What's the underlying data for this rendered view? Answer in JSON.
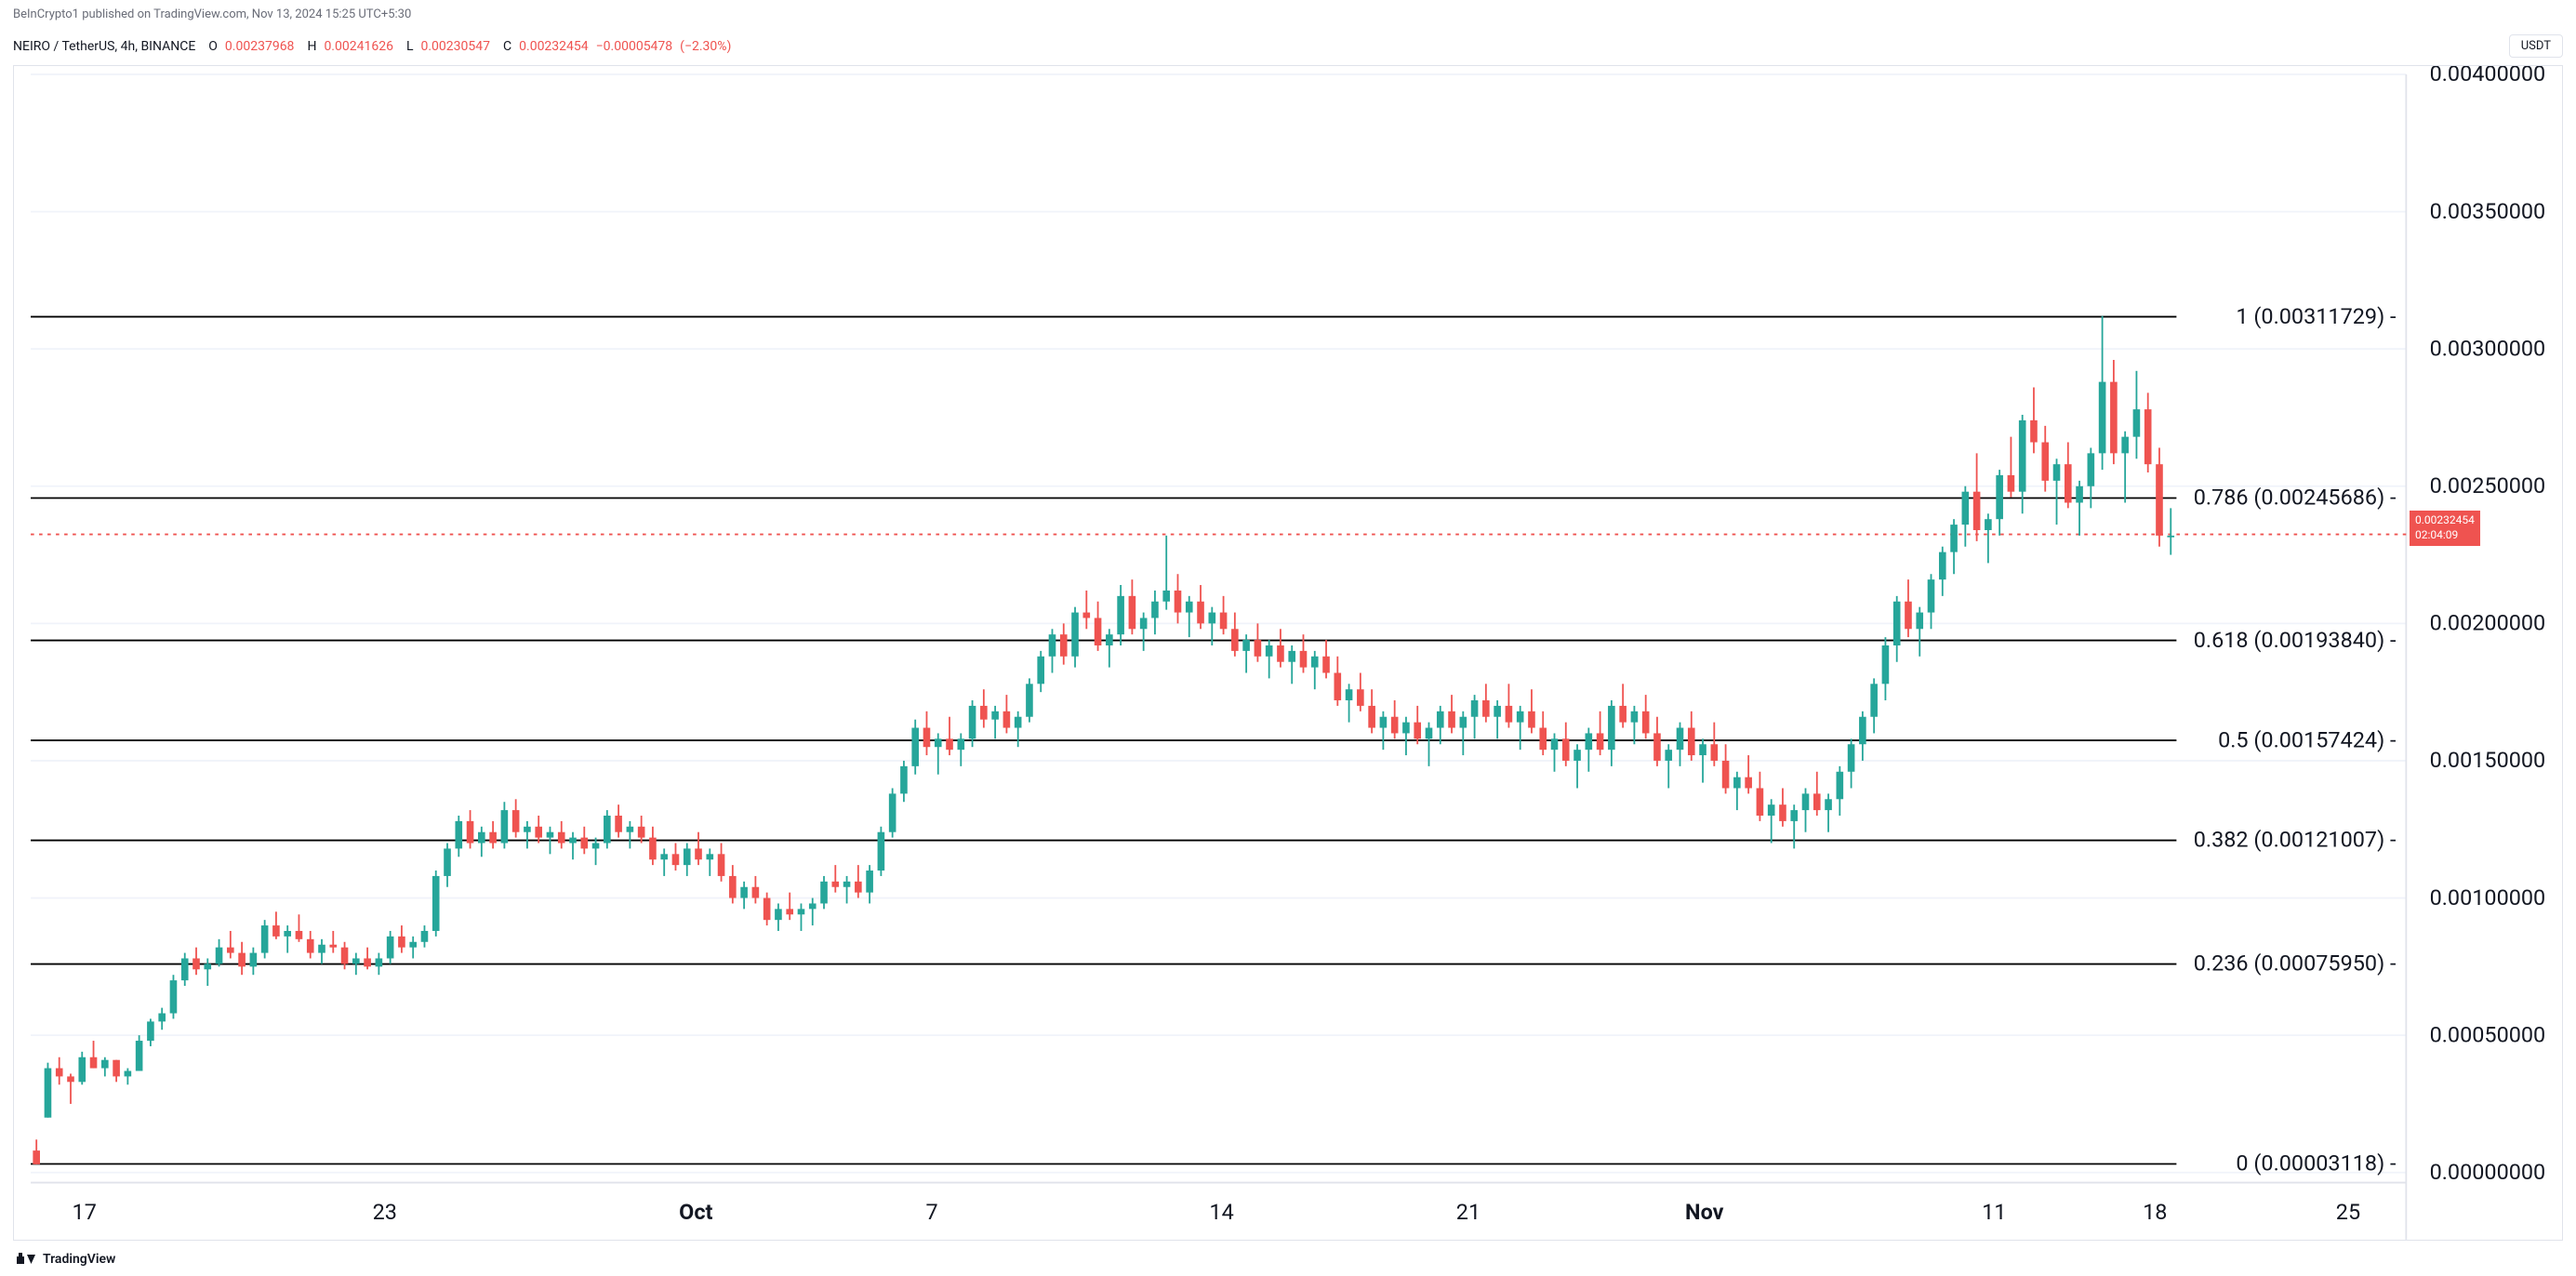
{
  "attribution": "BeInCrypto1 published on TradingView.com, Nov 13, 2024 15:25 UTC+5:30",
  "symbol": "NEIRO / TetherUS, 4h, BINANCE",
  "ohlc": {
    "o_label": "O",
    "o": "0.00237968",
    "h_label": "H",
    "h": "0.00241626",
    "l_label": "L",
    "l": "0.00230547",
    "c_label": "C",
    "c": "0.00232454",
    "chg": "−0.00005478",
    "chg_pct": "(−2.30%)"
  },
  "currency_badge": "USDT",
  "price_box": {
    "price": "0.00232454",
    "countdown": "02:04:09"
  },
  "y_axis": {
    "min": 0.0,
    "max": 0.004,
    "labels": [
      "0.00000000",
      "0.00050000",
      "0.00100000",
      "0.00150000",
      "0.00200000",
      "0.00250000",
      "0.00300000",
      "0.00350000",
      "0.00400000"
    ]
  },
  "fib_levels": [
    {
      "ratio": "1",
      "price": 0.00311729,
      "label": "1 (0.00311729)"
    },
    {
      "ratio": "0.786",
      "price": 0.00245686,
      "label": "0.786 (0.00245686)"
    },
    {
      "ratio": "0.618",
      "price": 0.0019384,
      "label": "0.618 (0.00193840)"
    },
    {
      "ratio": "0.5",
      "price": 0.00157424,
      "label": "0.5 (0.00157424)"
    },
    {
      "ratio": "0.382",
      "price": 0.00121007,
      "label": "0.382 (0.00121007)"
    },
    {
      "ratio": "0.236",
      "price": 0.0007595,
      "label": "0.236 (0.00075950)"
    },
    {
      "ratio": "0",
      "price": 3.118e-05,
      "label": "0 (0.00003118)"
    }
  ],
  "x_axis": [
    {
      "pos": 0.025,
      "label": "17",
      "bold": false
    },
    {
      "pos": 0.165,
      "label": "23",
      "bold": false
    },
    {
      "pos": 0.31,
      "label": "Oct",
      "bold": true
    },
    {
      "pos": 0.42,
      "label": "7",
      "bold": false
    },
    {
      "pos": 0.555,
      "label": "14",
      "bold": false
    },
    {
      "pos": 0.67,
      "label": "21",
      "bold": false
    },
    {
      "pos": 0.78,
      "label": "Nov",
      "bold": true
    },
    {
      "pos": 0.915,
      "label": "11",
      "bold": false
    },
    {
      "pos": 0.99,
      "label": "18",
      "bold": false
    },
    {
      "pos": 1.08,
      "label": "25",
      "bold": false
    }
  ],
  "colors": {
    "up": "#26a69a",
    "down": "#ef5350",
    "grid": "#f0f3fa",
    "border": "#e0e3eb",
    "fib_line": "#000000",
    "price_dotted": "#ef5350"
  },
  "current_price": 0.00232454,
  "candles": [
    {
      "o": 8e-05,
      "h": 0.00012,
      "l": 3e-05,
      "c": 3e-05
    },
    {
      "o": 0.0002,
      "h": 0.0004,
      "l": 0.0002,
      "c": 0.00038
    },
    {
      "o": 0.00038,
      "h": 0.00042,
      "l": 0.00032,
      "c": 0.00035
    },
    {
      "o": 0.00035,
      "h": 0.00036,
      "l": 0.00025,
      "c": 0.00033
    },
    {
      "o": 0.00033,
      "h": 0.00044,
      "l": 0.00032,
      "c": 0.00042
    },
    {
      "o": 0.00042,
      "h": 0.00048,
      "l": 0.00038,
      "c": 0.00038
    },
    {
      "o": 0.00038,
      "h": 0.00042,
      "l": 0.00035,
      "c": 0.00041
    },
    {
      "o": 0.00041,
      "h": 0.00041,
      "l": 0.00033,
      "c": 0.00035
    },
    {
      "o": 0.00035,
      "h": 0.00038,
      "l": 0.00032,
      "c": 0.00037
    },
    {
      "o": 0.00037,
      "h": 0.0005,
      "l": 0.00037,
      "c": 0.00048
    },
    {
      "o": 0.00048,
      "h": 0.00056,
      "l": 0.00046,
      "c": 0.00055
    },
    {
      "o": 0.00055,
      "h": 0.0006,
      "l": 0.00052,
      "c": 0.00058
    },
    {
      "o": 0.00058,
      "h": 0.00072,
      "l": 0.00056,
      "c": 0.0007
    },
    {
      "o": 0.0007,
      "h": 0.0008,
      "l": 0.00068,
      "c": 0.00078
    },
    {
      "o": 0.00078,
      "h": 0.00082,
      "l": 0.00072,
      "c": 0.00074
    },
    {
      "o": 0.00074,
      "h": 0.00078,
      "l": 0.00068,
      "c": 0.00076
    },
    {
      "o": 0.00076,
      "h": 0.00085,
      "l": 0.00075,
      "c": 0.00082
    },
    {
      "o": 0.00082,
      "h": 0.00088,
      "l": 0.00078,
      "c": 0.0008
    },
    {
      "o": 0.0008,
      "h": 0.00084,
      "l": 0.00072,
      "c": 0.00075
    },
    {
      "o": 0.00075,
      "h": 0.00082,
      "l": 0.00072,
      "c": 0.0008
    },
    {
      "o": 0.0008,
      "h": 0.00092,
      "l": 0.00078,
      "c": 0.0009
    },
    {
      "o": 0.0009,
      "h": 0.00095,
      "l": 0.00085,
      "c": 0.00086
    },
    {
      "o": 0.00086,
      "h": 0.0009,
      "l": 0.0008,
      "c": 0.00088
    },
    {
      "o": 0.00088,
      "h": 0.00094,
      "l": 0.00084,
      "c": 0.00085
    },
    {
      "o": 0.00085,
      "h": 0.00088,
      "l": 0.00078,
      "c": 0.0008
    },
    {
      "o": 0.0008,
      "h": 0.00085,
      "l": 0.00076,
      "c": 0.00083
    },
    {
      "o": 0.00083,
      "h": 0.00088,
      "l": 0.0008,
      "c": 0.00082
    },
    {
      "o": 0.00082,
      "h": 0.00084,
      "l": 0.00074,
      "c": 0.00076
    },
    {
      "o": 0.00076,
      "h": 0.0008,
      "l": 0.00072,
      "c": 0.00078
    },
    {
      "o": 0.00078,
      "h": 0.00082,
      "l": 0.00074,
      "c": 0.00075
    },
    {
      "o": 0.00075,
      "h": 0.0008,
      "l": 0.00072,
      "c": 0.00078
    },
    {
      "o": 0.00078,
      "h": 0.00088,
      "l": 0.00076,
      "c": 0.00086
    },
    {
      "o": 0.00086,
      "h": 0.0009,
      "l": 0.0008,
      "c": 0.00082
    },
    {
      "o": 0.00082,
      "h": 0.00086,
      "l": 0.00078,
      "c": 0.00084
    },
    {
      "o": 0.00084,
      "h": 0.0009,
      "l": 0.00082,
      "c": 0.00088
    },
    {
      "o": 0.00088,
      "h": 0.0011,
      "l": 0.00086,
      "c": 0.00108
    },
    {
      "o": 0.00108,
      "h": 0.0012,
      "l": 0.00104,
      "c": 0.00118
    },
    {
      "o": 0.00118,
      "h": 0.0013,
      "l": 0.00115,
      "c": 0.00128
    },
    {
      "o": 0.00128,
      "h": 0.00132,
      "l": 0.00118,
      "c": 0.0012
    },
    {
      "o": 0.0012,
      "h": 0.00126,
      "l": 0.00115,
      "c": 0.00124
    },
    {
      "o": 0.00124,
      "h": 0.00128,
      "l": 0.00118,
      "c": 0.0012
    },
    {
      "o": 0.0012,
      "h": 0.00135,
      "l": 0.00118,
      "c": 0.00132
    },
    {
      "o": 0.00132,
      "h": 0.00136,
      "l": 0.00122,
      "c": 0.00124
    },
    {
      "o": 0.00124,
      "h": 0.00128,
      "l": 0.00118,
      "c": 0.00126
    },
    {
      "o": 0.00126,
      "h": 0.0013,
      "l": 0.0012,
      "c": 0.00122
    },
    {
      "o": 0.00122,
      "h": 0.00126,
      "l": 0.00116,
      "c": 0.00124
    },
    {
      "o": 0.00124,
      "h": 0.00128,
      "l": 0.00118,
      "c": 0.0012
    },
    {
      "o": 0.0012,
      "h": 0.00124,
      "l": 0.00114,
      "c": 0.00122
    },
    {
      "o": 0.00122,
      "h": 0.00126,
      "l": 0.00116,
      "c": 0.00118
    },
    {
      "o": 0.00118,
      "h": 0.00122,
      "l": 0.00112,
      "c": 0.0012
    },
    {
      "o": 0.0012,
      "h": 0.00132,
      "l": 0.00118,
      "c": 0.0013
    },
    {
      "o": 0.0013,
      "h": 0.00134,
      "l": 0.00122,
      "c": 0.00124
    },
    {
      "o": 0.00124,
      "h": 0.00128,
      "l": 0.00118,
      "c": 0.00126
    },
    {
      "o": 0.00126,
      "h": 0.0013,
      "l": 0.0012,
      "c": 0.00122
    },
    {
      "o": 0.00122,
      "h": 0.00126,
      "l": 0.00112,
      "c": 0.00114
    },
    {
      "o": 0.00114,
      "h": 0.00118,
      "l": 0.00108,
      "c": 0.00116
    },
    {
      "o": 0.00116,
      "h": 0.0012,
      "l": 0.0011,
      "c": 0.00112
    },
    {
      "o": 0.00112,
      "h": 0.0012,
      "l": 0.00108,
      "c": 0.00118
    },
    {
      "o": 0.00118,
      "h": 0.00124,
      "l": 0.00112,
      "c": 0.00114
    },
    {
      "o": 0.00114,
      "h": 0.00118,
      "l": 0.00108,
      "c": 0.00116
    },
    {
      "o": 0.00116,
      "h": 0.0012,
      "l": 0.00106,
      "c": 0.00108
    },
    {
      "o": 0.00108,
      "h": 0.00112,
      "l": 0.00098,
      "c": 0.001
    },
    {
      "o": 0.001,
      "h": 0.00106,
      "l": 0.00096,
      "c": 0.00104
    },
    {
      "o": 0.00104,
      "h": 0.00108,
      "l": 0.00098,
      "c": 0.001
    },
    {
      "o": 0.001,
      "h": 0.00102,
      "l": 0.0009,
      "c": 0.00092
    },
    {
      "o": 0.00092,
      "h": 0.00098,
      "l": 0.00088,
      "c": 0.00096
    },
    {
      "o": 0.00096,
      "h": 0.00102,
      "l": 0.00092,
      "c": 0.00094
    },
    {
      "o": 0.00094,
      "h": 0.00098,
      "l": 0.00088,
      "c": 0.00096
    },
    {
      "o": 0.00096,
      "h": 0.001,
      "l": 0.0009,
      "c": 0.00098
    },
    {
      "o": 0.00098,
      "h": 0.00108,
      "l": 0.00096,
      "c": 0.00106
    },
    {
      "o": 0.00106,
      "h": 0.00112,
      "l": 0.00102,
      "c": 0.00104
    },
    {
      "o": 0.00104,
      "h": 0.00108,
      "l": 0.00098,
      "c": 0.00106
    },
    {
      "o": 0.00106,
      "h": 0.00112,
      "l": 0.001,
      "c": 0.00102
    },
    {
      "o": 0.00102,
      "h": 0.00112,
      "l": 0.00098,
      "c": 0.0011
    },
    {
      "o": 0.0011,
      "h": 0.00126,
      "l": 0.00108,
      "c": 0.00124
    },
    {
      "o": 0.00124,
      "h": 0.0014,
      "l": 0.00122,
      "c": 0.00138
    },
    {
      "o": 0.00138,
      "h": 0.0015,
      "l": 0.00135,
      "c": 0.00148
    },
    {
      "o": 0.00148,
      "h": 0.00165,
      "l": 0.00145,
      "c": 0.00162
    },
    {
      "o": 0.00162,
      "h": 0.00168,
      "l": 0.00152,
      "c": 0.00155
    },
    {
      "o": 0.00155,
      "h": 0.0016,
      "l": 0.00145,
      "c": 0.00158
    },
    {
      "o": 0.00158,
      "h": 0.00166,
      "l": 0.00152,
      "c": 0.00154
    },
    {
      "o": 0.00154,
      "h": 0.0016,
      "l": 0.00148,
      "c": 0.00158
    },
    {
      "o": 0.00158,
      "h": 0.00172,
      "l": 0.00155,
      "c": 0.0017
    },
    {
      "o": 0.0017,
      "h": 0.00176,
      "l": 0.00162,
      "c": 0.00165
    },
    {
      "o": 0.00165,
      "h": 0.0017,
      "l": 0.00158,
      "c": 0.00168
    },
    {
      "o": 0.00168,
      "h": 0.00174,
      "l": 0.0016,
      "c": 0.00162
    },
    {
      "o": 0.00162,
      "h": 0.00168,
      "l": 0.00155,
      "c": 0.00166
    },
    {
      "o": 0.00166,
      "h": 0.0018,
      "l": 0.00164,
      "c": 0.00178
    },
    {
      "o": 0.00178,
      "h": 0.0019,
      "l": 0.00175,
      "c": 0.00188
    },
    {
      "o": 0.00188,
      "h": 0.00198,
      "l": 0.00182,
      "c": 0.00196
    },
    {
      "o": 0.00196,
      "h": 0.002,
      "l": 0.00185,
      "c": 0.00188
    },
    {
      "o": 0.00188,
      "h": 0.00206,
      "l": 0.00184,
      "c": 0.00204
    },
    {
      "o": 0.00204,
      "h": 0.00212,
      "l": 0.00198,
      "c": 0.00202
    },
    {
      "o": 0.00202,
      "h": 0.00208,
      "l": 0.0019,
      "c": 0.00192
    },
    {
      "o": 0.00192,
      "h": 0.00198,
      "l": 0.00184,
      "c": 0.00196
    },
    {
      "o": 0.00196,
      "h": 0.00214,
      "l": 0.00192,
      "c": 0.0021
    },
    {
      "o": 0.0021,
      "h": 0.00216,
      "l": 0.00196,
      "c": 0.00198
    },
    {
      "o": 0.00198,
      "h": 0.00204,
      "l": 0.0019,
      "c": 0.00202
    },
    {
      "o": 0.00202,
      "h": 0.00212,
      "l": 0.00196,
      "c": 0.00208
    },
    {
      "o": 0.00208,
      "h": 0.00232,
      "l": 0.00205,
      "c": 0.00212
    },
    {
      "o": 0.00212,
      "h": 0.00218,
      "l": 0.002,
      "c": 0.00204
    },
    {
      "o": 0.00204,
      "h": 0.0021,
      "l": 0.00195,
      "c": 0.00208
    },
    {
      "o": 0.00208,
      "h": 0.00214,
      "l": 0.00198,
      "c": 0.002
    },
    {
      "o": 0.002,
      "h": 0.00206,
      "l": 0.00192,
      "c": 0.00204
    },
    {
      "o": 0.00204,
      "h": 0.0021,
      "l": 0.00196,
      "c": 0.00198
    },
    {
      "o": 0.00198,
      "h": 0.00204,
      "l": 0.00188,
      "c": 0.0019
    },
    {
      "o": 0.0019,
      "h": 0.00196,
      "l": 0.00182,
      "c": 0.00194
    },
    {
      "o": 0.00194,
      "h": 0.002,
      "l": 0.00186,
      "c": 0.00188
    },
    {
      "o": 0.00188,
      "h": 0.00194,
      "l": 0.0018,
      "c": 0.00192
    },
    {
      "o": 0.00192,
      "h": 0.00198,
      "l": 0.00184,
      "c": 0.00186
    },
    {
      "o": 0.00186,
      "h": 0.00192,
      "l": 0.00178,
      "c": 0.0019
    },
    {
      "o": 0.0019,
      "h": 0.00196,
      "l": 0.00182,
      "c": 0.00184
    },
    {
      "o": 0.00184,
      "h": 0.0019,
      "l": 0.00176,
      "c": 0.00188
    },
    {
      "o": 0.00188,
      "h": 0.00194,
      "l": 0.0018,
      "c": 0.00182
    },
    {
      "o": 0.00182,
      "h": 0.00188,
      "l": 0.0017,
      "c": 0.00172
    },
    {
      "o": 0.00172,
      "h": 0.00178,
      "l": 0.00164,
      "c": 0.00176
    },
    {
      "o": 0.00176,
      "h": 0.00182,
      "l": 0.00168,
      "c": 0.0017
    },
    {
      "o": 0.0017,
      "h": 0.00176,
      "l": 0.0016,
      "c": 0.00162
    },
    {
      "o": 0.00162,
      "h": 0.00168,
      "l": 0.00154,
      "c": 0.00166
    },
    {
      "o": 0.00166,
      "h": 0.00172,
      "l": 0.00158,
      "c": 0.0016
    },
    {
      "o": 0.0016,
      "h": 0.00166,
      "l": 0.00152,
      "c": 0.00164
    },
    {
      "o": 0.00164,
      "h": 0.0017,
      "l": 0.00156,
      "c": 0.00158
    },
    {
      "o": 0.00158,
      "h": 0.00164,
      "l": 0.00148,
      "c": 0.00162
    },
    {
      "o": 0.00162,
      "h": 0.0017,
      "l": 0.00156,
      "c": 0.00168
    },
    {
      "o": 0.00168,
      "h": 0.00174,
      "l": 0.0016,
      "c": 0.00162
    },
    {
      "o": 0.00162,
      "h": 0.00168,
      "l": 0.00152,
      "c": 0.00166
    },
    {
      "o": 0.00166,
      "h": 0.00174,
      "l": 0.00158,
      "c": 0.00172
    },
    {
      "o": 0.00172,
      "h": 0.00178,
      "l": 0.00164,
      "c": 0.00166
    },
    {
      "o": 0.00166,
      "h": 0.00172,
      "l": 0.00158,
      "c": 0.0017
    },
    {
      "o": 0.0017,
      "h": 0.00178,
      "l": 0.00162,
      "c": 0.00164
    },
    {
      "o": 0.00164,
      "h": 0.0017,
      "l": 0.00154,
      "c": 0.00168
    },
    {
      "o": 0.00168,
      "h": 0.00176,
      "l": 0.0016,
      "c": 0.00162
    },
    {
      "o": 0.00162,
      "h": 0.00168,
      "l": 0.00152,
      "c": 0.00154
    },
    {
      "o": 0.00154,
      "h": 0.0016,
      "l": 0.00146,
      "c": 0.00158
    },
    {
      "o": 0.00158,
      "h": 0.00164,
      "l": 0.00148,
      "c": 0.0015
    },
    {
      "o": 0.0015,
      "h": 0.00156,
      "l": 0.0014,
      "c": 0.00154
    },
    {
      "o": 0.00154,
      "h": 0.00162,
      "l": 0.00146,
      "c": 0.0016
    },
    {
      "o": 0.0016,
      "h": 0.00168,
      "l": 0.00152,
      "c": 0.00154
    },
    {
      "o": 0.00154,
      "h": 0.00172,
      "l": 0.00148,
      "c": 0.0017
    },
    {
      "o": 0.0017,
      "h": 0.00178,
      "l": 0.00162,
      "c": 0.00164
    },
    {
      "o": 0.00164,
      "h": 0.0017,
      "l": 0.00156,
      "c": 0.00168
    },
    {
      "o": 0.00168,
      "h": 0.00174,
      "l": 0.00158,
      "c": 0.0016
    },
    {
      "o": 0.0016,
      "h": 0.00166,
      "l": 0.00148,
      "c": 0.0015
    },
    {
      "o": 0.0015,
      "h": 0.00156,
      "l": 0.0014,
      "c": 0.00154
    },
    {
      "o": 0.00154,
      "h": 0.00164,
      "l": 0.00148,
      "c": 0.00162
    },
    {
      "o": 0.00162,
      "h": 0.00168,
      "l": 0.0015,
      "c": 0.00152
    },
    {
      "o": 0.00152,
      "h": 0.00158,
      "l": 0.00142,
      "c": 0.00156
    },
    {
      "o": 0.00156,
      "h": 0.00164,
      "l": 0.00148,
      "c": 0.0015
    },
    {
      "o": 0.0015,
      "h": 0.00156,
      "l": 0.00138,
      "c": 0.0014
    },
    {
      "o": 0.0014,
      "h": 0.00146,
      "l": 0.00132,
      "c": 0.00144
    },
    {
      "o": 0.00144,
      "h": 0.00152,
      "l": 0.00138,
      "c": 0.0014
    },
    {
      "o": 0.0014,
      "h": 0.00146,
      "l": 0.00128,
      "c": 0.0013
    },
    {
      "o": 0.0013,
      "h": 0.00136,
      "l": 0.0012,
      "c": 0.00134
    },
    {
      "o": 0.00134,
      "h": 0.0014,
      "l": 0.00126,
      "c": 0.00128
    },
    {
      "o": 0.00128,
      "h": 0.00134,
      "l": 0.00118,
      "c": 0.00132
    },
    {
      "o": 0.00132,
      "h": 0.0014,
      "l": 0.00124,
      "c": 0.00138
    },
    {
      "o": 0.00138,
      "h": 0.00146,
      "l": 0.0013,
      "c": 0.00132
    },
    {
      "o": 0.00132,
      "h": 0.00138,
      "l": 0.00124,
      "c": 0.00136
    },
    {
      "o": 0.00136,
      "h": 0.00148,
      "l": 0.0013,
      "c": 0.00146
    },
    {
      "o": 0.00146,
      "h": 0.00158,
      "l": 0.0014,
      "c": 0.00156
    },
    {
      "o": 0.00156,
      "h": 0.00168,
      "l": 0.0015,
      "c": 0.00166
    },
    {
      "o": 0.00166,
      "h": 0.0018,
      "l": 0.0016,
      "c": 0.00178
    },
    {
      "o": 0.00178,
      "h": 0.00195,
      "l": 0.00172,
      "c": 0.00192
    },
    {
      "o": 0.00192,
      "h": 0.0021,
      "l": 0.00186,
      "c": 0.00208
    },
    {
      "o": 0.00208,
      "h": 0.00216,
      "l": 0.00195,
      "c": 0.00198
    },
    {
      "o": 0.00198,
      "h": 0.00206,
      "l": 0.00188,
      "c": 0.00204
    },
    {
      "o": 0.00204,
      "h": 0.00218,
      "l": 0.00198,
      "c": 0.00216
    },
    {
      "o": 0.00216,
      "h": 0.00228,
      "l": 0.0021,
      "c": 0.00226
    },
    {
      "o": 0.00226,
      "h": 0.00238,
      "l": 0.00218,
      "c": 0.00236
    },
    {
      "o": 0.00236,
      "h": 0.0025,
      "l": 0.00228,
      "c": 0.00248
    },
    {
      "o": 0.00248,
      "h": 0.00262,
      "l": 0.0023,
      "c": 0.00234
    },
    {
      "o": 0.00234,
      "h": 0.0024,
      "l": 0.00222,
      "c": 0.00238
    },
    {
      "o": 0.00238,
      "h": 0.00256,
      "l": 0.00232,
      "c": 0.00254
    },
    {
      "o": 0.00254,
      "h": 0.00268,
      "l": 0.00246,
      "c": 0.00248
    },
    {
      "o": 0.00248,
      "h": 0.00276,
      "l": 0.0024,
      "c": 0.00274
    },
    {
      "o": 0.00274,
      "h": 0.00286,
      "l": 0.00262,
      "c": 0.00266
    },
    {
      "o": 0.00266,
      "h": 0.00272,
      "l": 0.00248,
      "c": 0.00252
    },
    {
      "o": 0.00252,
      "h": 0.0026,
      "l": 0.00236,
      "c": 0.00258
    },
    {
      "o": 0.00258,
      "h": 0.00266,
      "l": 0.00242,
      "c": 0.00244
    },
    {
      "o": 0.00244,
      "h": 0.00252,
      "l": 0.00232,
      "c": 0.0025
    },
    {
      "o": 0.0025,
      "h": 0.00264,
      "l": 0.00242,
      "c": 0.00262
    },
    {
      "o": 0.00262,
      "h": 0.00312,
      "l": 0.00256,
      "c": 0.00288
    },
    {
      "o": 0.00288,
      "h": 0.00296,
      "l": 0.00258,
      "c": 0.00262
    },
    {
      "o": 0.00262,
      "h": 0.0027,
      "l": 0.00244,
      "c": 0.00268
    },
    {
      "o": 0.00268,
      "h": 0.00292,
      "l": 0.0026,
      "c": 0.00278
    },
    {
      "o": 0.00278,
      "h": 0.00284,
      "l": 0.00255,
      "c": 0.00258
    },
    {
      "o": 0.00258,
      "h": 0.00264,
      "l": 0.00228,
      "c": 0.00232
    },
    {
      "o": 0.00232,
      "h": 0.00242,
      "l": 0.00225,
      "c": 0.00232
    }
  ],
  "footer": "TradingView"
}
